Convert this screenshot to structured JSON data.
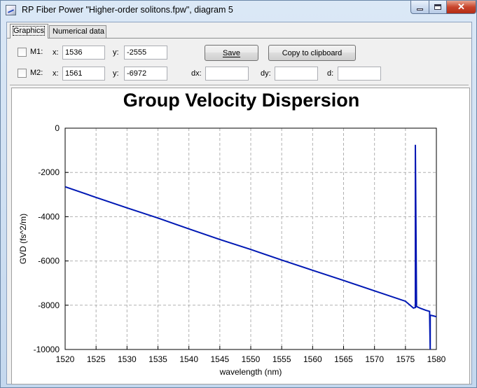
{
  "window": {
    "title": "RP Fiber Power \"Higher-order solitons.fpw\", diagram 5"
  },
  "tabs": [
    {
      "label": "Graphics",
      "active": true
    },
    {
      "label": "Numerical data",
      "active": false
    }
  ],
  "markers": {
    "m1": {
      "label": "M1:",
      "x_label": "x:",
      "x_value": "1536",
      "y_label": "y:",
      "y_value": "-2555"
    },
    "m2": {
      "label": "M2:",
      "x_label": "x:",
      "x_value": "1561",
      "y_label": "y:",
      "y_value": "-6972"
    },
    "dx_label": "dx:",
    "dx_value": "",
    "dy_label": "dy:",
    "dy_value": "",
    "d_label": "d:",
    "d_value": ""
  },
  "buttons": {
    "save": "Save",
    "copy": "Copy to clipboard"
  },
  "colors": {
    "series": "#0018b4",
    "grid": "#b0b0b0"
  },
  "chart_data": {
    "type": "line",
    "title": "Group Velocity Dispersion",
    "xlabel": "wavelength (nm)",
    "ylabel": "GVD (fs^2/m)",
    "xlim": [
      1520,
      1580
    ],
    "ylim": [
      -10000,
      0
    ],
    "x_ticks": [
      1520,
      1525,
      1530,
      1535,
      1540,
      1545,
      1550,
      1555,
      1560,
      1565,
      1570,
      1575,
      1580
    ],
    "y_ticks": [
      0,
      -2000,
      -4000,
      -6000,
      -8000,
      -10000
    ],
    "grid": true,
    "legend": "none",
    "series": [
      {
        "x": [
          1520,
          1525,
          1530,
          1535,
          1540,
          1545,
          1550,
          1555,
          1560,
          1565,
          1570,
          1575,
          1576.3,
          1576.6,
          1576.6,
          1576.8,
          1577.5,
          1578.3,
          1578.9,
          1579.0,
          1579.0,
          1579.5,
          1580
        ],
        "y": [
          -2650,
          -3130,
          -3600,
          -4060,
          -4550,
          -5030,
          -5480,
          -5960,
          -6420,
          -6880,
          -7350,
          -7820,
          -8130,
          -8100,
          -750,
          -8060,
          -8150,
          -8230,
          -8280,
          -10000,
          -8450,
          -8480,
          -8520
        ]
      }
    ]
  }
}
